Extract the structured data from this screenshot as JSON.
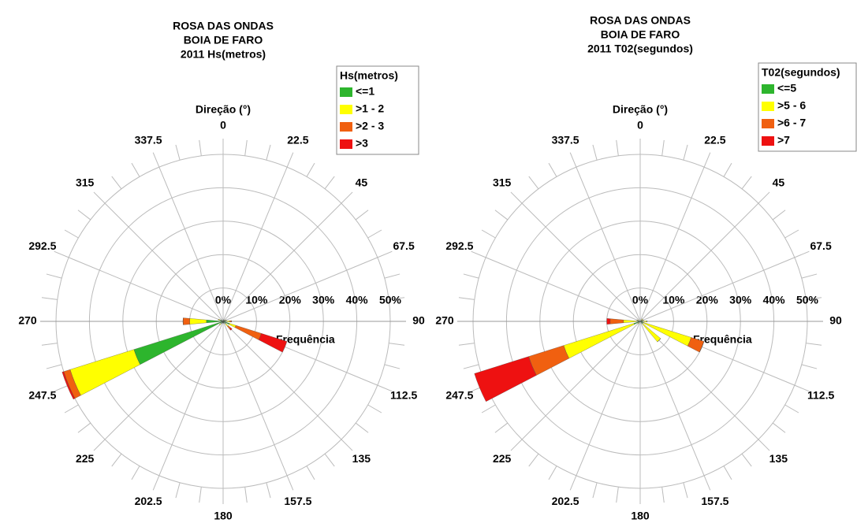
{
  "chart_data": [
    {
      "type": "rose",
      "title": [
        "ROSA DAS ONDAS",
        "BOIA DE FARO",
        "2011 Hs(metros)"
      ],
      "axis_label": "Direção (°)",
      "value_label": "Frequência",
      "legend_title": "Hs(metros)",
      "directions": [
        0,
        22.5,
        45,
        67.5,
        90,
        112.5,
        135,
        157.5,
        180,
        202.5,
        225,
        247.5,
        270,
        292.5,
        315,
        337.5
      ],
      "rlim": [
        0,
        50
      ],
      "rticks": [
        {
          "value": 0,
          "label": "0%"
        },
        {
          "value": 10,
          "label": "10%"
        },
        {
          "value": 20,
          "label": "20%"
        },
        {
          "value": 30,
          "label": "30%"
        },
        {
          "value": 40,
          "label": "40%"
        },
        {
          "value": 50,
          "label": "50%"
        }
      ],
      "series": [
        {
          "name": "<=1",
          "color": "#2db52d",
          "values": [
            0,
            0.5,
            0.5,
            0.5,
            1,
            2,
            1,
            0.5,
            0.5,
            0.5,
            1,
            28,
            5,
            1,
            0.5,
            0
          ]
        },
        {
          "name": ">1 - 2",
          "color": "#ffff00",
          "values": [
            0,
            0,
            0,
            0.5,
            1,
            2,
            1,
            0,
            0,
            0,
            0.5,
            20,
            5,
            0.5,
            0,
            0
          ]
        },
        {
          "name": ">2 - 3",
          "color": "#f06010",
          "values": [
            0,
            0,
            0,
            0,
            0.5,
            8,
            1,
            0,
            0,
            0,
            0,
            2,
            2,
            0,
            0,
            0
          ]
        },
        {
          "name": ">3",
          "color": "#ee1111",
          "values": [
            0,
            0,
            0,
            0,
            0,
            8,
            0.5,
            0,
            0,
            0,
            0,
            0.5,
            0,
            0,
            0,
            0
          ]
        }
      ]
    },
    {
      "type": "rose",
      "title": [
        "ROSA DAS ONDAS",
        "BOIA DE FARO",
        "2011 T02(segundos)"
      ],
      "axis_label": "Direção (°)",
      "value_label": "Frequência",
      "legend_title": "T02(segundos)",
      "directions": [
        0,
        22.5,
        45,
        67.5,
        90,
        112.5,
        135,
        157.5,
        180,
        202.5,
        225,
        247.5,
        270,
        292.5,
        315,
        337.5
      ],
      "rlim": [
        0,
        50
      ],
      "rticks": [
        {
          "value": 0,
          "label": "0%"
        },
        {
          "value": 10,
          "label": "10%"
        },
        {
          "value": 20,
          "label": "20%"
        },
        {
          "value": 30,
          "label": "30%"
        },
        {
          "value": 40,
          "label": "40%"
        },
        {
          "value": 50,
          "label": "50%"
        }
      ],
      "series": [
        {
          "name": "<=5",
          "color": "#2db52d",
          "values": [
            0,
            0,
            0.5,
            0.5,
            1,
            1,
            1,
            0,
            0,
            0,
            0.5,
            2,
            1,
            0.5,
            0,
            0
          ]
        },
        {
          "name": ">5 - 6",
          "color": "#ffff00",
          "values": [
            0,
            0,
            0.5,
            0.5,
            1,
            15,
            7,
            0,
            0,
            0,
            0.5,
            22,
            4,
            0.5,
            0,
            0
          ]
        },
        {
          "name": ">6 - 7",
          "color": "#f06010",
          "values": [
            0,
            0,
            0,
            0,
            0,
            4,
            0,
            0,
            0,
            0,
            0,
            11,
            4,
            0,
            0,
            0
          ]
        },
        {
          "name": ">7",
          "color": "#ee1111",
          "values": [
            0,
            0,
            0,
            0,
            0,
            0,
            0,
            0,
            0,
            0,
            0,
            17,
            1,
            0,
            0,
            0
          ]
        }
      ]
    }
  ]
}
